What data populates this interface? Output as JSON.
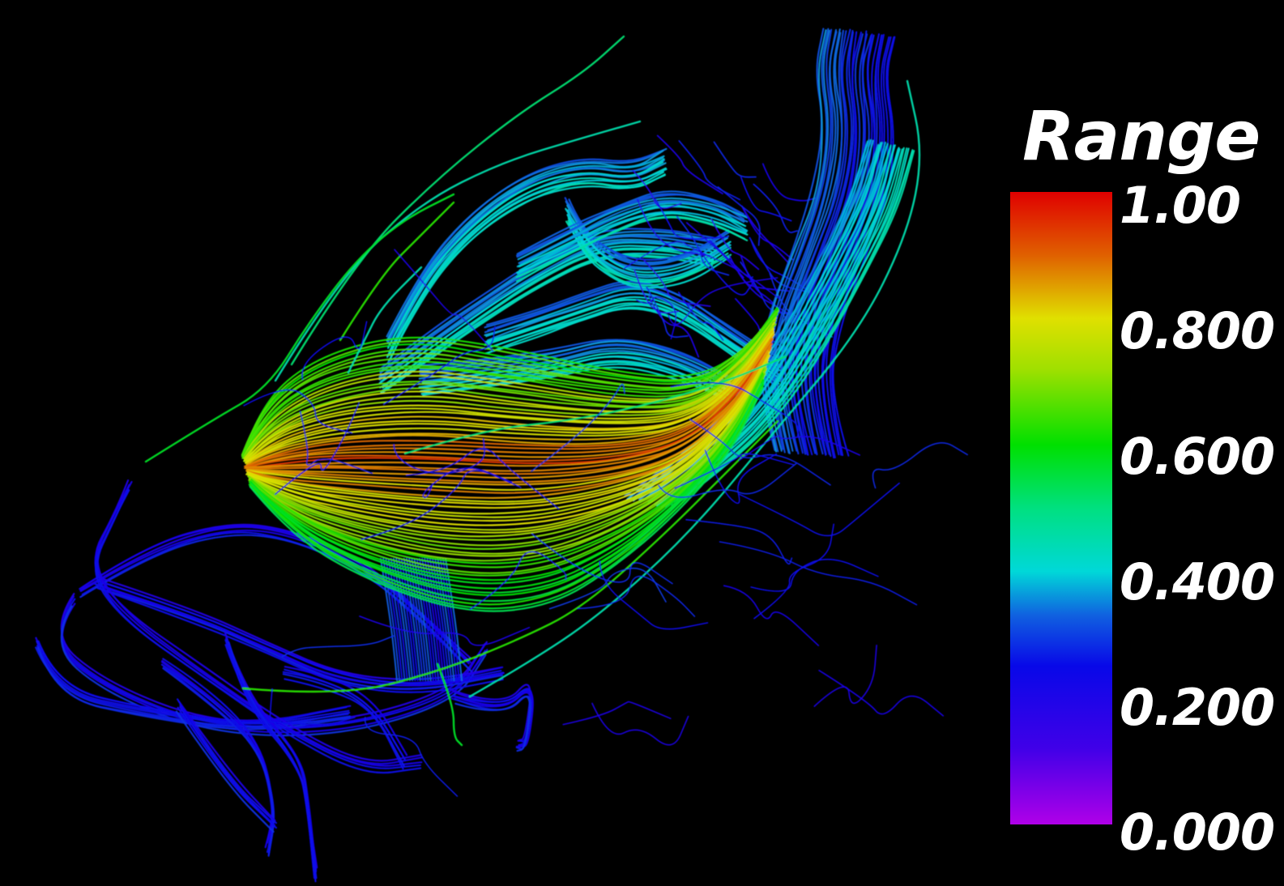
{
  "scene": {
    "background_color": "#000000",
    "content": "streamlines colored by scalar"
  },
  "legend": {
    "title": "Range",
    "ticks": [
      "1.00",
      "0.800",
      "0.600",
      "0.400",
      "0.200",
      "0.000"
    ],
    "range": [
      0,
      1
    ],
    "colormap": [
      "#b000e8",
      "#1000e8",
      "#00d8d8",
      "#00e000",
      "#e0e000",
      "#e00000"
    ]
  }
}
